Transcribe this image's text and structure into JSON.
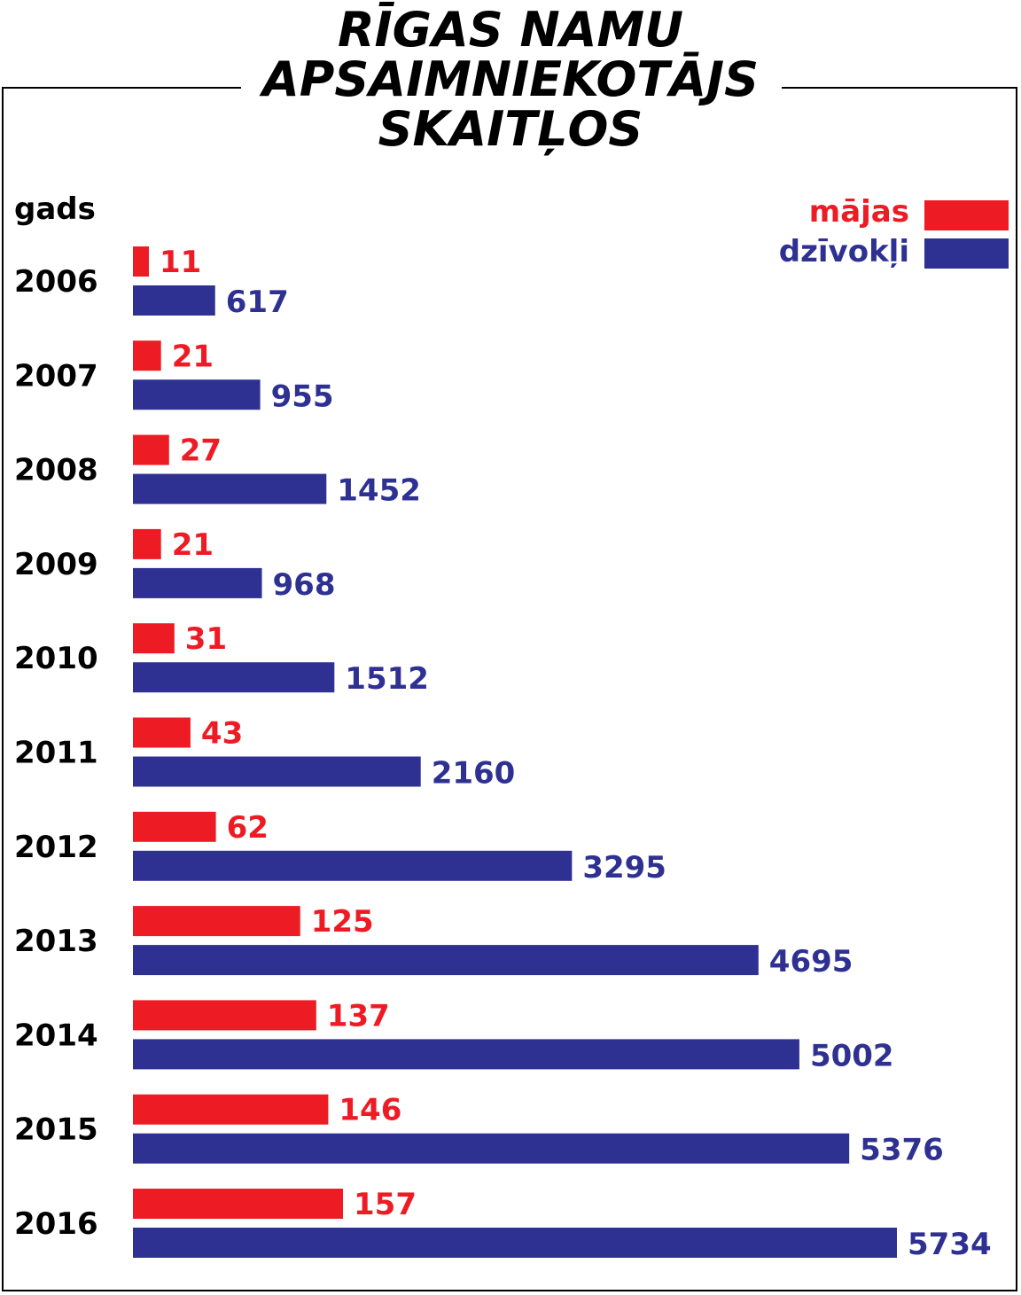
{
  "title_lines": [
    "RĪGAS NAMU",
    "APSAIMNIEKOTĀJS",
    "SKAITĻOS"
  ],
  "year_axis_label": "gads",
  "colors": {
    "houses": "#ed1c24",
    "apartments": "#2e3192",
    "text": "#000000"
  },
  "chart_data": {
    "type": "bar",
    "orientation": "horizontal",
    "title": "RĪGAS NAMU APSAIMNIEKOTĀJS SKAITĻOS",
    "categories": [
      "2006",
      "2007",
      "2008",
      "2009",
      "2010",
      "2011",
      "2012",
      "2013",
      "2014",
      "2015",
      "2016"
    ],
    "series": [
      {
        "name": "mājas",
        "color": "#ed1c24",
        "values": [
          11,
          21,
          27,
          21,
          31,
          43,
          62,
          125,
          137,
          146,
          157
        ]
      },
      {
        "name": "dzīvokļi",
        "color": "#2e3192",
        "values": [
          617,
          955,
          1452,
          968,
          1512,
          2160,
          3295,
          4695,
          5002,
          5376,
          5734
        ]
      }
    ],
    "legend_position": "top-right",
    "grid": false,
    "data_labels": true
  }
}
